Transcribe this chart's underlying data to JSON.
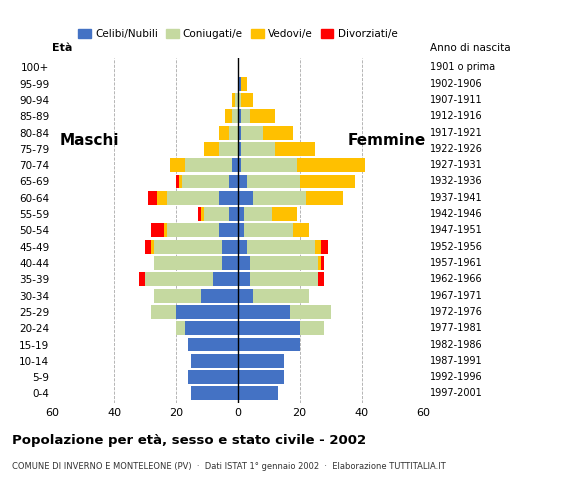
{
  "age_groups": [
    "0-4",
    "5-9",
    "10-14",
    "15-19",
    "20-24",
    "25-29",
    "30-34",
    "35-39",
    "40-44",
    "45-49",
    "50-54",
    "55-59",
    "60-64",
    "65-69",
    "70-74",
    "75-79",
    "80-84",
    "85-89",
    "90-94",
    "95-99",
    "100+"
  ],
  "birth_years": [
    "1997-2001",
    "1992-1996",
    "1987-1991",
    "1982-1986",
    "1977-1981",
    "1972-1976",
    "1967-1971",
    "1962-1966",
    "1957-1961",
    "1952-1956",
    "1947-1951",
    "1942-1946",
    "1937-1941",
    "1932-1936",
    "1927-1931",
    "1922-1926",
    "1917-1921",
    "1912-1916",
    "1907-1911",
    "1902-1906",
    "1901 o prima"
  ],
  "males_celibinubili": [
    15,
    16,
    15,
    16,
    17,
    20,
    12,
    8,
    5,
    5,
    6,
    3,
    6,
    3,
    2,
    0,
    0,
    0,
    0,
    0,
    0
  ],
  "males_coniugati": [
    0,
    0,
    0,
    0,
    3,
    8,
    15,
    22,
    22,
    22,
    17,
    8,
    17,
    15,
    15,
    6,
    3,
    2,
    1,
    0,
    0
  ],
  "males_vedovi": [
    0,
    0,
    0,
    0,
    0,
    0,
    0,
    0,
    0,
    1,
    1,
    1,
    3,
    1,
    5,
    5,
    3,
    2,
    1,
    0,
    0
  ],
  "males_divorziati": [
    0,
    0,
    0,
    0,
    0,
    0,
    0,
    2,
    0,
    2,
    4,
    1,
    3,
    1,
    0,
    0,
    0,
    0,
    0,
    0,
    0
  ],
  "females_celibinubili": [
    13,
    15,
    15,
    20,
    20,
    17,
    5,
    4,
    4,
    3,
    2,
    2,
    5,
    3,
    1,
    1,
    1,
    1,
    0,
    1,
    0
  ],
  "females_coniugati": [
    0,
    0,
    0,
    0,
    8,
    13,
    18,
    22,
    22,
    22,
    16,
    9,
    17,
    17,
    18,
    11,
    7,
    3,
    1,
    0,
    0
  ],
  "females_vedovi": [
    0,
    0,
    0,
    0,
    0,
    0,
    0,
    0,
    1,
    2,
    5,
    8,
    12,
    18,
    22,
    13,
    10,
    8,
    4,
    2,
    0
  ],
  "females_divorziati": [
    0,
    0,
    0,
    0,
    0,
    0,
    0,
    2,
    1,
    2,
    0,
    0,
    0,
    0,
    0,
    0,
    0,
    0,
    0,
    0,
    0
  ],
  "colors": {
    "celibinubili": "#4472c4",
    "coniugati": "#c5d9a0",
    "vedovi": "#ffc000",
    "divorziati": "#ff0000"
  },
  "xlim": 60,
  "title": "Popolazione per età, sesso e stato civile - 2002",
  "subtitle": "COMUNE DI INVERNO E MONTELEONE (PV)  ·  Dati ISTAT 1° gennaio 2002  ·  Elaborazione TUTTITALIA.IT",
  "legend_labels": [
    "Celibi/Nubili",
    "Coniugati/e",
    "Vedovi/e",
    "Divorziati/e"
  ],
  "xlabel_left": "Età",
  "xlabel_right": "Anno di nascita",
  "label_maschi": "Maschi",
  "label_femmine": "Femmine"
}
